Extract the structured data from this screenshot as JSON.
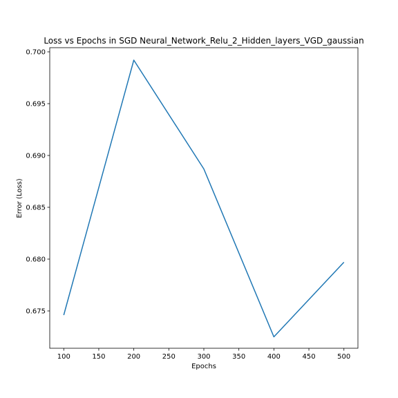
{
  "chart_data": {
    "type": "line",
    "title": "Loss vs Epochs in SGD Neural_Network_Relu_2_Hidden_layers_VGD_gaussian",
    "xlabel": "Epochs",
    "ylabel": "Error (Loss)",
    "x": [
      100,
      200,
      300,
      400,
      500
    ],
    "series": [
      {
        "values": [
          0.6746,
          0.6992,
          0.6887,
          0.6725,
          0.6797
        ]
      }
    ],
    "xlim": [
      80,
      520
    ],
    "ylim": [
      0.6714,
      0.7004
    ],
    "xticks": [
      100,
      150,
      200,
      250,
      300,
      350,
      400,
      450,
      500
    ],
    "xtick_labels": [
      "100",
      "150",
      "200",
      "250",
      "300",
      "350",
      "400",
      "450",
      "500"
    ],
    "yticks": [
      0.675,
      0.68,
      0.685,
      0.69,
      0.695,
      0.7
    ],
    "ytick_labels": [
      "0.675",
      "0.680",
      "0.685",
      "0.690",
      "0.695",
      "0.700"
    ],
    "grid": false,
    "line_color": "#1f77b4"
  }
}
